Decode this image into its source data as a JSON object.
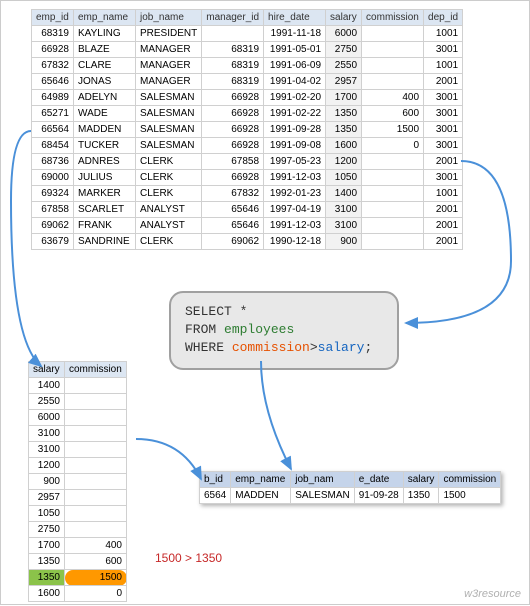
{
  "main_table": {
    "headers": [
      "emp_id",
      "emp_name",
      "job_name",
      "manager_id",
      "hire_date",
      "salary",
      "commission",
      "dep_id"
    ],
    "rows": [
      [
        "68319",
        "KAYLING",
        "PRESIDENT",
        "",
        "1991-11-18",
        "6000",
        "",
        "1001"
      ],
      [
        "66928",
        "BLAZE",
        "MANAGER",
        "68319",
        "1991-05-01",
        "2750",
        "",
        "3001"
      ],
      [
        "67832",
        "CLARE",
        "MANAGER",
        "68319",
        "1991-06-09",
        "2550",
        "",
        "1001"
      ],
      [
        "65646",
        "JONAS",
        "MANAGER",
        "68319",
        "1991-04-02",
        "2957",
        "",
        "2001"
      ],
      [
        "64989",
        "ADELYN",
        "SALESMAN",
        "66928",
        "1991-02-20",
        "1700",
        "400",
        "3001"
      ],
      [
        "65271",
        "WADE",
        "SALESMAN",
        "66928",
        "1991-02-22",
        "1350",
        "600",
        "3001"
      ],
      [
        "66564",
        "MADDEN",
        "SALESMAN",
        "66928",
        "1991-09-28",
        "1350",
        "1500",
        "3001"
      ],
      [
        "68454",
        "TUCKER",
        "SALESMAN",
        "66928",
        "1991-09-08",
        "1600",
        "0",
        "3001"
      ],
      [
        "68736",
        "ADNRES",
        "CLERK",
        "67858",
        "1997-05-23",
        "1200",
        "",
        "2001"
      ],
      [
        "69000",
        "JULIUS",
        "CLERK",
        "66928",
        "1991-12-03",
        "1050",
        "",
        "3001"
      ],
      [
        "69324",
        "MARKER",
        "CLERK",
        "67832",
        "1992-01-23",
        "1400",
        "",
        "1001"
      ],
      [
        "67858",
        "SCARLET",
        "ANALYST",
        "65646",
        "1997-04-19",
        "3100",
        "",
        "2001"
      ],
      [
        "69062",
        "FRANK",
        "ANALYST",
        "65646",
        "1991-12-03",
        "3100",
        "",
        "2001"
      ],
      [
        "63679",
        "SANDRINE",
        "CLERK",
        "69062",
        "1990-12-18",
        "900",
        "",
        "2001"
      ]
    ]
  },
  "sql": {
    "line1_a": "SELECT",
    "line1_b": "*",
    "line2_a": "FROM",
    "line2_b": "employees",
    "line3_a": "WHERE",
    "line3_b": "commission",
    "line3_c": ">",
    "line3_d": "salary",
    "line3_e": ";"
  },
  "small_table": {
    "headers": [
      "salary",
      "commission"
    ],
    "rows": [
      [
        "1400",
        ""
      ],
      [
        "2550",
        ""
      ],
      [
        "6000",
        ""
      ],
      [
        "3100",
        ""
      ],
      [
        "3100",
        ""
      ],
      [
        "1200",
        ""
      ],
      [
        "900",
        ""
      ],
      [
        "2957",
        ""
      ],
      [
        "1050",
        ""
      ],
      [
        "2750",
        ""
      ],
      [
        "1700",
        "400"
      ],
      [
        "1350",
        "600"
      ],
      [
        "1350",
        "1500"
      ],
      [
        "1600",
        "0"
      ]
    ],
    "highlight_row_index": 12
  },
  "result_table": {
    "headers": [
      "b_id",
      "emp_name",
      "job_nam",
      "e_date",
      "salary",
      "commission"
    ],
    "rows": [
      [
        "6564",
        "MADDEN",
        "SALESMAN",
        "91-09-28",
        "1350",
        "1500"
      ]
    ]
  },
  "compare_text": "1500 > 1350",
  "watermark": "w3resource",
  "colors": {
    "header_bg": "#dce6f2",
    "border": "#d0d0d0",
    "salary_bg": "#f2f2f2",
    "arrow": "#4a90d9",
    "green": "#8bc34a",
    "orange": "#ff9800",
    "red_text": "#c62828"
  }
}
